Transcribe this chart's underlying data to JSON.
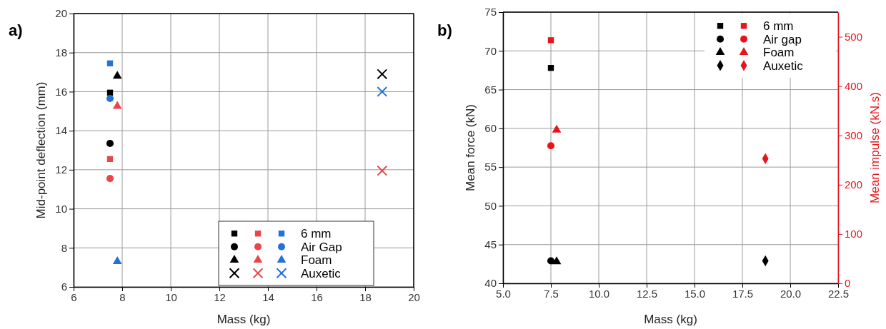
{
  "chart_data": [
    {
      "type": "scatter",
      "title": "a)",
      "xlabel": "Mass (kg)",
      "ylabel": "Mid-point deflection (mm)",
      "xlim": [
        6,
        20
      ],
      "xticks": [
        6,
        8,
        10,
        12,
        14,
        16,
        18,
        20
      ],
      "ylim": [
        6,
        20
      ],
      "yticks": [
        6,
        8,
        10,
        12,
        14,
        16,
        18,
        20
      ],
      "grid": true,
      "legend": "bottom right",
      "series": [
        {
          "name": "6 mm",
          "marker": "square",
          "x": [
            7.5,
            7.5,
            7.5
          ],
          "values": [
            15.95,
            12.55,
            17.45
          ],
          "colors": [
            "#000000",
            "#e8474a",
            "#2472d8"
          ]
        },
        {
          "name": "Air Gap",
          "marker": "circle",
          "x": [
            7.5,
            7.5,
            7.5
          ],
          "values": [
            13.35,
            11.55,
            15.65
          ],
          "colors": [
            "#000000",
            "#e8474a",
            "#2472d8"
          ]
        },
        {
          "name": "Foam",
          "marker": "triangle",
          "x": [
            7.8,
            7.8,
            7.8
          ],
          "values": [
            16.8,
            15.25,
            7.3
          ],
          "colors": [
            "#000000",
            "#e8474a",
            "#2472d8"
          ]
        },
        {
          "name": "Auxetic",
          "marker": "cross",
          "x": [
            18.7,
            18.7,
            18.7
          ],
          "values": [
            16.9,
            11.95,
            16.0
          ],
          "colors": [
            "#000000",
            "#e8474a",
            "#2472d8"
          ]
        }
      ]
    },
    {
      "type": "scatter",
      "title": "b)",
      "xlabel": "Mass (kg)",
      "ylabel": "Mean force (kN)",
      "y2label": "Mean impulse (kN.s)",
      "xlim": [
        5,
        22.5
      ],
      "xticks": [
        {
          "value": 5,
          "label": "5.0"
        },
        {
          "value": 7.5,
          "label": "7.5"
        },
        {
          "value": 10,
          "label": "10.0"
        },
        {
          "value": 12.5,
          "label": "12.5"
        },
        {
          "value": 15,
          "label": "15.0"
        },
        {
          "value": 17.5,
          "label": "17.5"
        },
        {
          "value": 20,
          "label": "20.0"
        },
        {
          "value": 22.5,
          "label": "22.5"
        }
      ],
      "ylim": [
        40,
        75
      ],
      "yticks": [
        40,
        45,
        50,
        55,
        60,
        65,
        70,
        75
      ],
      "y2lim": [
        0,
        550
      ],
      "y2ticks": [
        0,
        100,
        200,
        300,
        400,
        500
      ],
      "grid": true,
      "legend": "top right",
      "series": [
        {
          "marker": "square",
          "color": "#000000",
          "x": [
            7.5
          ],
          "values": [
            67.8
          ]
        },
        {
          "marker": "circle",
          "color": "#000000",
          "x": [
            7.5
          ],
          "values": [
            42.9
          ]
        },
        {
          "marker": "triangle",
          "color": "#000000",
          "x": [
            7.8
          ],
          "values": [
            42.8
          ]
        },
        {
          "marker": "diamond",
          "color": "#000000",
          "x": [
            18.7
          ],
          "values": [
            42.9
          ]
        },
        {
          "name": "6 mm",
          "marker": "square",
          "color": "#e8141c",
          "axis": "y2",
          "x": [
            7.5
          ],
          "values": [
            493
          ]
        },
        {
          "name": "Air gap",
          "marker": "circle",
          "color": "#e8141c",
          "axis": "y2",
          "x": [
            7.5
          ],
          "values": [
            279
          ]
        },
        {
          "name": "Foam",
          "marker": "triangle",
          "color": "#e8141c",
          "axis": "y2",
          "x": [
            7.8
          ],
          "values": [
            311
          ]
        },
        {
          "name": "Auxetic",
          "marker": "diamond",
          "color": "#e8141c",
          "axis": "y2",
          "x": [
            18.7
          ],
          "values": [
            253
          ]
        }
      ]
    }
  ]
}
